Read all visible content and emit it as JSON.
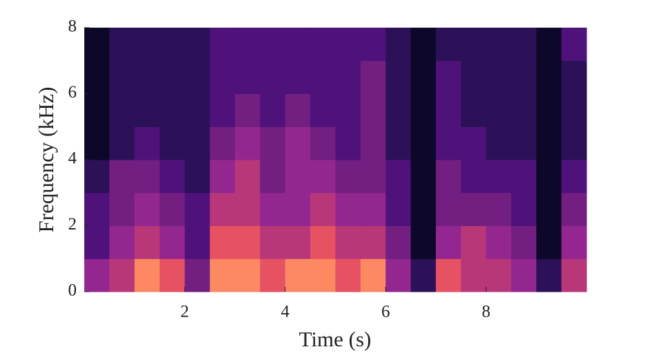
{
  "chart_data": {
    "type": "spectrogram",
    "xlabel": "Time (s)",
    "ylabel": "Frequency (kHz)",
    "xlim": [
      0,
      10
    ],
    "ylim": [
      0,
      8
    ],
    "xticks": [
      2,
      4,
      6,
      8
    ],
    "yticks": [
      0,
      2,
      4,
      6,
      8
    ],
    "xbins": [
      0,
      0.5,
      1,
      1.5,
      2,
      2.5,
      3,
      3.5,
      4,
      4.5,
      5,
      5.5,
      6,
      6.5,
      7,
      7.5,
      8,
      8.5,
      9,
      9.5,
      10
    ],
    "ybins": [
      0,
      1,
      2,
      3,
      4,
      5,
      6,
      7,
      8
    ],
    "z": [
      [
        5,
        3,
        3,
        2,
        1,
        1,
        1,
        1
      ],
      [
        6,
        5,
        4,
        4,
        2,
        2,
        2,
        2
      ],
      [
        8,
        6,
        5,
        4,
        3,
        2,
        2,
        2
      ],
      [
        7,
        5,
        4,
        3,
        2,
        2,
        2,
        2
      ],
      [
        4,
        3,
        3,
        2,
        2,
        2,
        2,
        2
      ],
      [
        8,
        7,
        6,
        5,
        4,
        3,
        3,
        3
      ],
      [
        8,
        7,
        6,
        6,
        5,
        4,
        3,
        3
      ],
      [
        7,
        6,
        5,
        4,
        4,
        3,
        3,
        3
      ],
      [
        8,
        6,
        5,
        5,
        5,
        4,
        3,
        3
      ],
      [
        8,
        7,
        6,
        5,
        4,
        3,
        3,
        3
      ],
      [
        7,
        6,
        5,
        4,
        3,
        3,
        3,
        3
      ],
      [
        8,
        6,
        5,
        4,
        4,
        4,
        4,
        3
      ],
      [
        5,
        4,
        3,
        3,
        2,
        2,
        2,
        2
      ],
      [
        2,
        1,
        1,
        1,
        1,
        1,
        1,
        1
      ],
      [
        7,
        5,
        4,
        4,
        3,
        3,
        3,
        2
      ],
      [
        6,
        6,
        4,
        3,
        3,
        2,
        2,
        2
      ],
      [
        6,
        5,
        4,
        3,
        2,
        2,
        2,
        2
      ],
      [
        5,
        4,
        3,
        3,
        2,
        2,
        2,
        2
      ],
      [
        2,
        1,
        1,
        1,
        1,
        1,
        1,
        1
      ],
      [
        6,
        5,
        4,
        3,
        2,
        2,
        2,
        3
      ]
    ],
    "colors": [
      "#000004",
      "#0d0829",
      "#2c1158",
      "#4f127b",
      "#721f81",
      "#93278f",
      "#b73779",
      "#e75263",
      "#fc8961",
      "#fcfdbf"
    ]
  }
}
